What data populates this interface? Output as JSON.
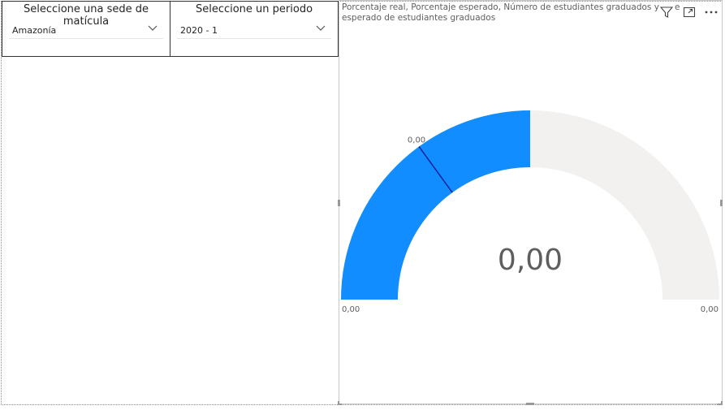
{
  "slicers": {
    "sede": {
      "title": "Seleccione una sede de matícula",
      "value": "Amazonía"
    },
    "periodo": {
      "title": "Seleccione un periodo",
      "value": "2020 - 1"
    }
  },
  "gauge": {
    "title_line1": "Porcentaje real, Porcentaje esperado, Número de estudiantes graduados y",
    "title_line2": "esperado de estudiantes graduados",
    "title_overflow_char": "e",
    "center_value": "0,00",
    "min_label": "0,00",
    "max_label": "0,00",
    "target_label": "0,00",
    "fill_fraction": 0.5,
    "target_fraction": 0.3
  },
  "icons": [
    "filter-icon",
    "focus-mode-icon",
    "more-options-icon"
  ],
  "colors": {
    "fill": "#118DFF",
    "track": "#F2F1F0",
    "target": "#12239E",
    "text": "#605E5C"
  }
}
